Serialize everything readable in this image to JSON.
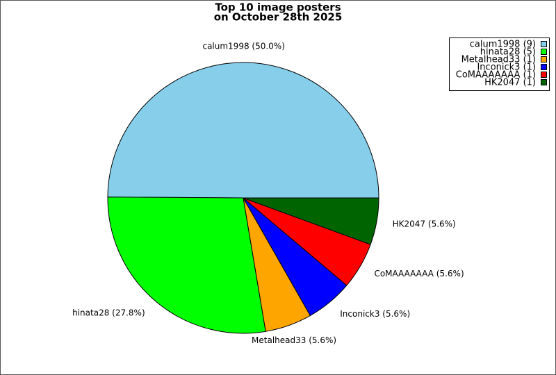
{
  "chart_data": {
    "type": "pie",
    "title": [
      "Top 10 image posters",
      "on October 28th 2025"
    ],
    "categories": [
      "calum1998 (9)",
      "hinata28 (5)",
      "Metalhead33 (1)",
      "Inconick3 (1)",
      "CoMAAAAAAA (1)",
      "HK2047 (1)"
    ],
    "values": [
      50.0,
      27.8,
      5.6,
      5.6,
      5.6,
      5.6
    ],
    "value_labels": [
      "calum1998 (50.0%)",
      "hinata28 (27.8%)",
      "Metalhead33 (5.6%)",
      "Inconick3 (5.6%)",
      "CoMAAAAAAA (5.6%)",
      "HK2047 (5.6%)"
    ],
    "colors": [
      "#87ceeb",
      "#00ff00",
      "#ffa500",
      "#0000ff",
      "#ff0000",
      "#006400"
    ],
    "legend": "upper right"
  }
}
